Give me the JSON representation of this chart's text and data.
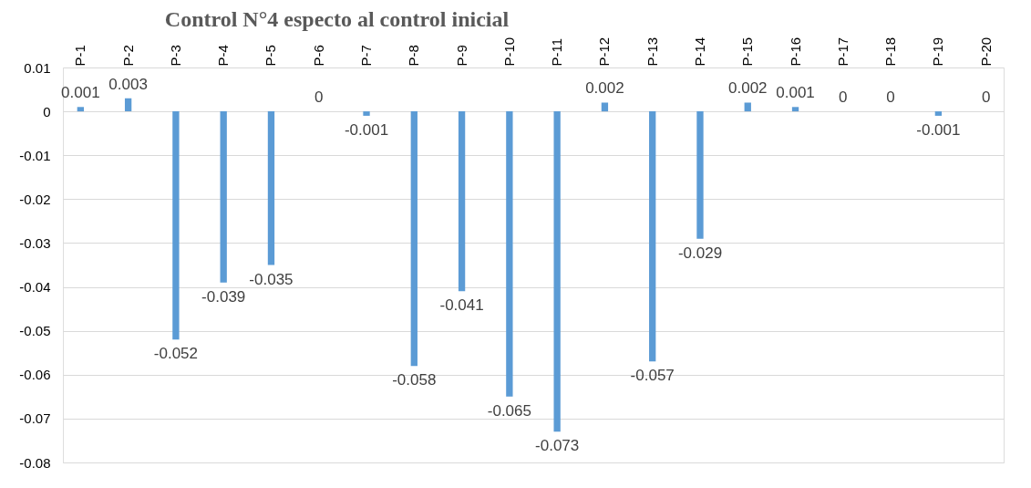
{
  "chart_data": {
    "type": "bar",
    "title": "Control N°4  especto al control inicial",
    "categories": [
      "P-1",
      "P-2",
      "P-3",
      "P-4",
      "P-5",
      "P-6",
      "P-7",
      "P-8",
      "P-9",
      "P-10",
      "P-11",
      "P-12",
      "P-13",
      "P-14",
      "P-15",
      "P-16",
      "P-17",
      "P-18",
      "P-19",
      "P-20"
    ],
    "series": [
      {
        "color": "#5b9bd5",
        "values": [
          0.001,
          0.003,
          -0.052,
          -0.039,
          -0.035,
          0,
          -0.001,
          -0.058,
          -0.041,
          -0.065,
          -0.073,
          0.002,
          -0.057,
          -0.029,
          0.002,
          0.001,
          0,
          0,
          -0.001,
          0
        ]
      }
    ],
    "ylim": [
      -0.08,
      0.01
    ],
    "yticks": [
      -0.08,
      -0.07,
      -0.06,
      -0.05,
      -0.04,
      -0.03,
      -0.02,
      -0.01,
      0,
      0.01
    ],
    "grid": "y",
    "data_labels": true
  }
}
